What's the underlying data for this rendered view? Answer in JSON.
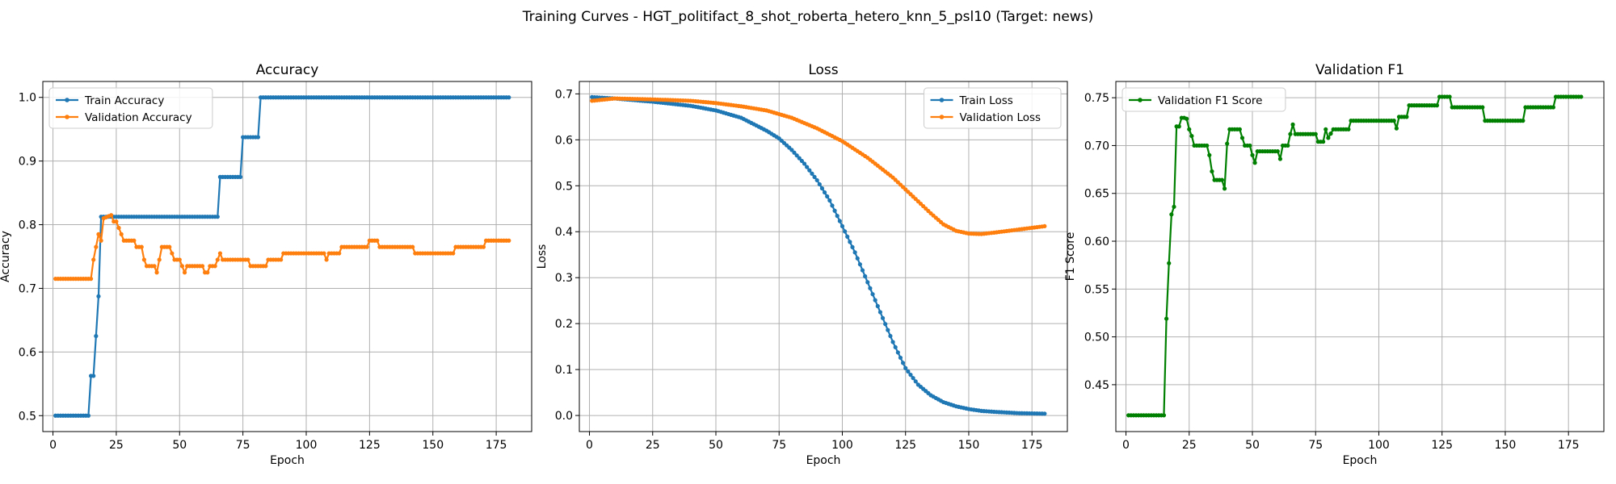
{
  "figure": {
    "title": "Training Curves - HGT_politifact_8_shot_roberta_hetero_knn_5_psl10 (Target: news)"
  },
  "colors": {
    "blue": "#1f77b4",
    "orange": "#ff7f0e",
    "green": "#008000",
    "grid": "#b0b0b0"
  },
  "chart_data": [
    {
      "type": "line",
      "title": "Accuracy",
      "xlabel": "Epoch",
      "ylabel": "Accuracy",
      "xlim": [
        -4,
        189
      ],
      "ylim": [
        0.475,
        1.025
      ],
      "xticks": [
        0,
        25,
        50,
        75,
        100,
        125,
        150,
        175
      ],
      "yticks": [
        0.5,
        0.6,
        0.7,
        0.8,
        0.9,
        1.0
      ],
      "ytick_labels": [
        "0.5",
        "0.6",
        "0.7",
        "0.8",
        "0.9",
        "1.0"
      ],
      "grid": true,
      "legend_position": "upper-left",
      "epochs": 180,
      "series": [
        {
          "name": "Train Accuracy",
          "color": "#1f77b4",
          "knots": [
            [
              1,
              0.5
            ],
            [
              14,
              0.5
            ],
            [
              15,
              0.5625
            ],
            [
              16,
              0.5625
            ],
            [
              17,
              0.625
            ],
            [
              18,
              0.6875
            ],
            [
              19,
              0.8125
            ],
            [
              65,
              0.8125
            ],
            [
              66,
              0.875
            ],
            [
              74,
              0.875
            ],
            [
              75,
              0.9375
            ],
            [
              81,
              0.9375
            ],
            [
              82,
              1.0
            ],
            [
              180,
              1.0
            ]
          ]
        },
        {
          "name": "Validation Accuracy",
          "color": "#ff7f0e",
          "knots": [
            [
              1,
              0.715
            ],
            [
              15,
              0.715
            ],
            [
              16,
              0.745
            ],
            [
              17,
              0.765
            ],
            [
              18,
              0.785
            ],
            [
              19,
              0.775
            ],
            [
              20,
              0.81
            ],
            [
              23,
              0.815
            ],
            [
              24,
              0.805
            ],
            [
              25,
              0.805
            ],
            [
              26,
              0.795
            ],
            [
              27,
              0.785
            ],
            [
              28,
              0.775
            ],
            [
              32,
              0.775
            ],
            [
              33,
              0.765
            ],
            [
              35,
              0.765
            ],
            [
              36,
              0.745
            ],
            [
              37,
              0.735
            ],
            [
              40,
              0.735
            ],
            [
              41,
              0.725
            ],
            [
              42,
              0.745
            ],
            [
              43,
              0.765
            ],
            [
              46,
              0.765
            ],
            [
              47,
              0.755
            ],
            [
              48,
              0.745
            ],
            [
              50,
              0.745
            ],
            [
              51,
              0.735
            ],
            [
              52,
              0.725
            ],
            [
              53,
              0.735
            ],
            [
              59,
              0.735
            ],
            [
              60,
              0.725
            ],
            [
              61,
              0.725
            ],
            [
              62,
              0.735
            ],
            [
              64,
              0.735
            ],
            [
              65,
              0.745
            ],
            [
              66,
              0.755
            ],
            [
              67,
              0.745
            ],
            [
              77,
              0.745
            ],
            [
              78,
              0.735
            ],
            [
              84,
              0.735
            ],
            [
              85,
              0.745
            ],
            [
              90,
              0.745
            ],
            [
              91,
              0.755
            ],
            [
              107,
              0.755
            ],
            [
              108,
              0.745
            ],
            [
              109,
              0.755
            ],
            [
              113,
              0.755
            ],
            [
              114,
              0.765
            ],
            [
              124,
              0.765
            ],
            [
              125,
              0.775
            ],
            [
              128,
              0.775
            ],
            [
              129,
              0.765
            ],
            [
              142,
              0.765
            ],
            [
              143,
              0.755
            ],
            [
              158,
              0.755
            ],
            [
              159,
              0.765
            ],
            [
              170,
              0.765
            ],
            [
              171,
              0.775
            ],
            [
              180,
              0.775
            ]
          ]
        }
      ]
    },
    {
      "type": "line",
      "title": "Loss",
      "xlabel": "Epoch",
      "ylabel": "Loss",
      "xlim": [
        -4,
        189
      ],
      "ylim": [
        -0.035,
        0.727
      ],
      "xticks": [
        0,
        25,
        50,
        75,
        100,
        125,
        150,
        175
      ],
      "yticks": [
        0.0,
        0.1,
        0.2,
        0.3,
        0.4,
        0.5,
        0.6,
        0.7
      ],
      "ytick_labels": [
        "0.0",
        "0.1",
        "0.2",
        "0.3",
        "0.4",
        "0.5",
        "0.6",
        "0.7"
      ],
      "grid": true,
      "legend_position": "upper-right",
      "epochs": 180,
      "series": [
        {
          "name": "Train Loss",
          "color": "#1f77b4",
          "knots": [
            [
              1,
              0.693
            ],
            [
              10,
              0.69
            ],
            [
              25,
              0.683
            ],
            [
              40,
              0.674
            ],
            [
              50,
              0.664
            ],
            [
              60,
              0.648
            ],
            [
              70,
              0.62
            ],
            [
              75,
              0.603
            ],
            [
              80,
              0.578
            ],
            [
              85,
              0.548
            ],
            [
              90,
              0.512
            ],
            [
              95,
              0.468
            ],
            [
              100,
              0.412
            ],
            [
              105,
              0.355
            ],
            [
              110,
              0.29
            ],
            [
              115,
              0.225
            ],
            [
              120,
              0.16
            ],
            [
              125,
              0.103
            ],
            [
              130,
              0.067
            ],
            [
              135,
              0.044
            ],
            [
              140,
              0.029
            ],
            [
              145,
              0.02
            ],
            [
              150,
              0.014
            ],
            [
              155,
              0.01
            ],
            [
              160,
              0.008
            ],
            [
              170,
              0.005
            ],
            [
              180,
              0.004
            ]
          ]
        },
        {
          "name": "Validation Loss",
          "color": "#ff7f0e",
          "knots": [
            [
              1,
              0.685
            ],
            [
              10,
              0.69
            ],
            [
              25,
              0.688
            ],
            [
              40,
              0.685
            ],
            [
              50,
              0.68
            ],
            [
              60,
              0.673
            ],
            [
              70,
              0.664
            ],
            [
              80,
              0.648
            ],
            [
              90,
              0.625
            ],
            [
              100,
              0.597
            ],
            [
              110,
              0.561
            ],
            [
              120,
              0.518
            ],
            [
              125,
              0.492
            ],
            [
              130,
              0.466
            ],
            [
              135,
              0.44
            ],
            [
              140,
              0.416
            ],
            [
              145,
              0.402
            ],
            [
              150,
              0.396
            ],
            [
              155,
              0.395
            ],
            [
              160,
              0.398
            ],
            [
              170,
              0.405
            ],
            [
              180,
              0.412
            ]
          ]
        }
      ]
    },
    {
      "type": "line",
      "title": "Validation F1",
      "xlabel": "Epoch",
      "ylabel": "F1 Score",
      "xlim": [
        -4,
        189
      ],
      "ylim": [
        0.401,
        0.767
      ],
      "xticks": [
        0,
        25,
        50,
        75,
        100,
        125,
        150,
        175
      ],
      "yticks": [
        0.45,
        0.5,
        0.55,
        0.6,
        0.65,
        0.7,
        0.75
      ],
      "ytick_labels": [
        "0.45",
        "0.50",
        "0.55",
        "0.60",
        "0.65",
        "0.70",
        "0.75"
      ],
      "grid": true,
      "legend_position": "upper-left",
      "epochs": 180,
      "series": [
        {
          "name": "Validation F1 Score",
          "color": "#008000",
          "knots": [
            [
              1,
              0.418
            ],
            [
              15,
              0.418
            ],
            [
              16,
              0.519
            ],
            [
              17,
              0.577
            ],
            [
              18,
              0.628
            ],
            [
              19,
              0.636
            ],
            [
              20,
              0.72
            ],
            [
              21,
              0.72
            ],
            [
              22,
              0.729
            ],
            [
              23,
              0.729
            ],
            [
              24,
              0.728
            ],
            [
              25,
              0.717
            ],
            [
              26,
              0.71
            ],
            [
              27,
              0.7
            ],
            [
              32,
              0.7
            ],
            [
              33,
              0.69
            ],
            [
              34,
              0.673
            ],
            [
              35,
              0.664
            ],
            [
              38,
              0.664
            ],
            [
              39,
              0.655
            ],
            [
              40,
              0.702
            ],
            [
              41,
              0.717
            ],
            [
              45,
              0.717
            ],
            [
              46,
              0.708
            ],
            [
              47,
              0.7
            ],
            [
              49,
              0.7
            ],
            [
              50,
              0.69
            ],
            [
              51,
              0.682
            ],
            [
              52,
              0.694
            ],
            [
              60,
              0.694
            ],
            [
              61,
              0.686
            ],
            [
              62,
              0.7
            ],
            [
              64,
              0.7
            ],
            [
              65,
              0.712
            ],
            [
              66,
              0.722
            ],
            [
              67,
              0.712
            ],
            [
              75,
              0.712
            ],
            [
              76,
              0.704
            ],
            [
              78,
              0.704
            ],
            [
              79,
              0.717
            ],
            [
              80,
              0.708
            ],
            [
              82,
              0.717
            ],
            [
              88,
              0.717
            ],
            [
              89,
              0.726
            ],
            [
              106,
              0.726
            ],
            [
              107,
              0.718
            ],
            [
              108,
              0.73
            ],
            [
              111,
              0.73
            ],
            [
              112,
              0.742
            ],
            [
              123,
              0.742
            ],
            [
              124,
              0.751
            ],
            [
              128,
              0.751
            ],
            [
              129,
              0.74
            ],
            [
              141,
              0.74
            ],
            [
              142,
              0.726
            ],
            [
              157,
              0.726
            ],
            [
              158,
              0.74
            ],
            [
              169,
              0.74
            ],
            [
              170,
              0.751
            ],
            [
              180,
              0.751
            ]
          ]
        }
      ]
    }
  ]
}
